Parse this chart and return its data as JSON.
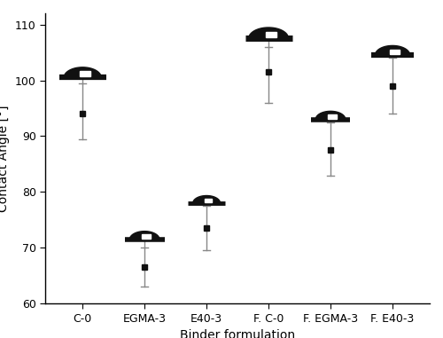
{
  "categories": [
    "C-0",
    "EGMA-3",
    "E40-3",
    "F. C-0",
    "F. EGMA-3",
    "F. E40-3"
  ],
  "mean_values": [
    94.0,
    66.5,
    73.5,
    101.5,
    87.5,
    99.0
  ],
  "droplet_line_values": [
    100.5,
    71.5,
    78.0,
    107.5,
    93.0,
    104.5
  ],
  "error_lower": [
    89.5,
    63.0,
    69.5,
    96.0,
    83.0,
    94.0
  ],
  "error_upper": [
    99.5,
    70.0,
    77.5,
    106.0,
    92.5,
    104.0
  ],
  "ylabel": "Contact Angle [°]",
  "xlabel": "Binder formulation",
  "ylim": [
    60,
    112
  ],
  "yticks": [
    60,
    70,
    80,
    90,
    100,
    110
  ],
  "background_color": "#ffffff",
  "marker_color": "#111111",
  "line_color": "#888888",
  "droplet_color": "#111111",
  "droplet_rx": [
    0.3,
    0.24,
    0.22,
    0.32,
    0.24,
    0.28
  ],
  "droplet_ry_factor": [
    0.55,
    0.55,
    0.55,
    0.55,
    0.55,
    0.55
  ],
  "bar_half_widths": [
    0.38,
    0.32,
    0.3,
    0.38,
    0.32,
    0.34
  ],
  "bar_thickness": [
    4.5,
    4.0,
    3.5,
    5.0,
    4.0,
    4.5
  ]
}
